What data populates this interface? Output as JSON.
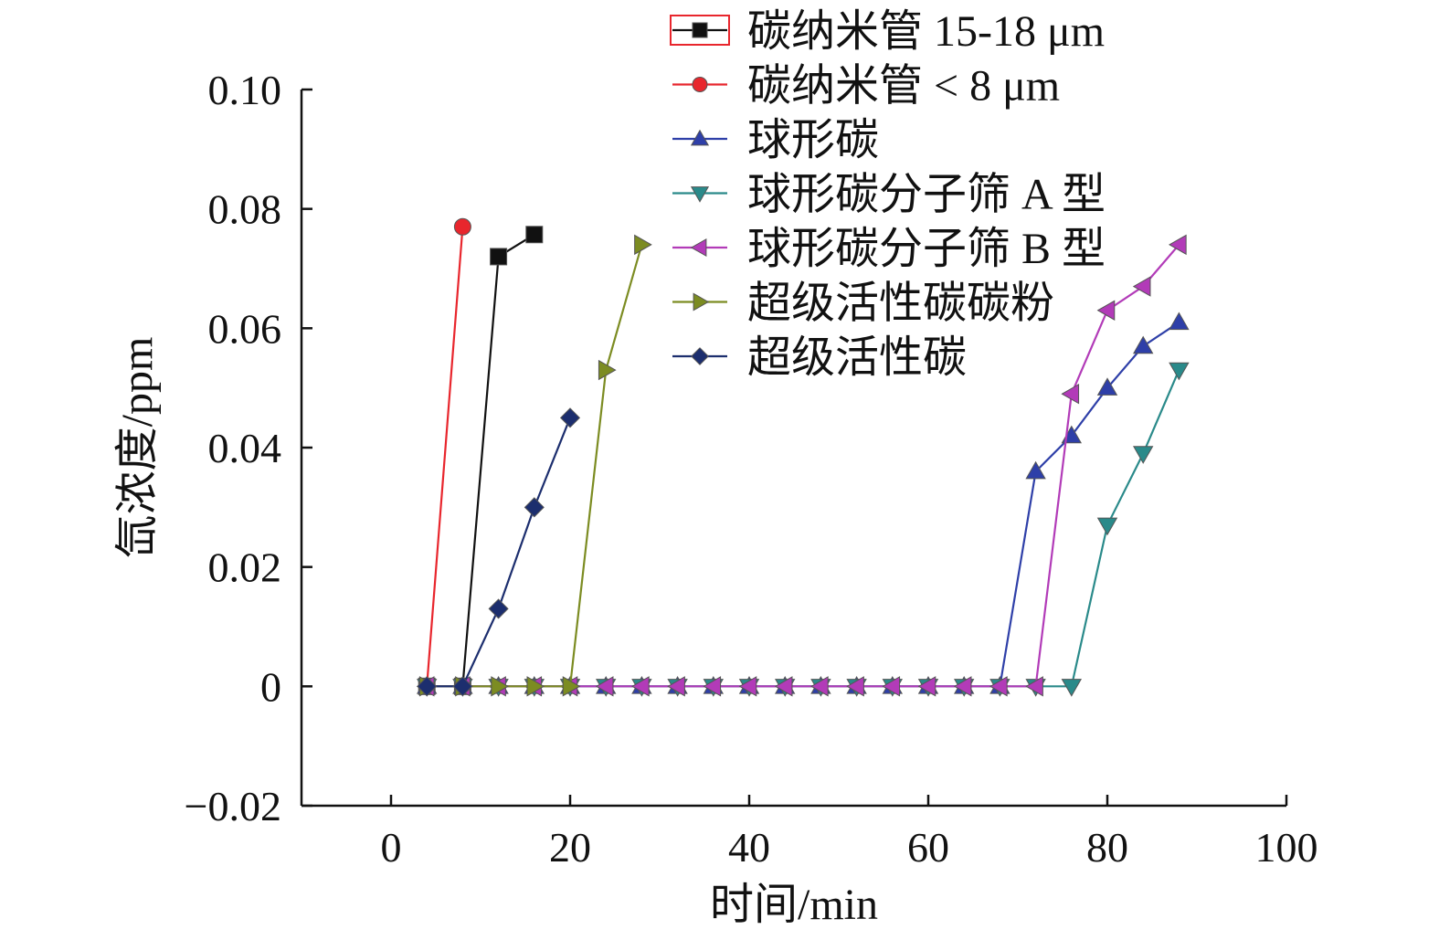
{
  "chart_data": {
    "type": "line",
    "title": "",
    "xlabel": "时间/min",
    "ylabel": "氙浓度/ppm",
    "xlim": [
      -10,
      100
    ],
    "ylim": [
      -0.02,
      0.1
    ],
    "xticks": [
      0,
      20,
      40,
      60,
      80,
      100
    ],
    "xtick_labels": [
      "0",
      "20",
      "40",
      "60",
      "80",
      "100"
    ],
    "yticks": [
      -0.02,
      0,
      0.02,
      0.04,
      0.06,
      0.08,
      0.1
    ],
    "ytick_labels": [
      "−0.02",
      "0",
      "0.02",
      "0.04",
      "0.06",
      "0.08",
      "0.10"
    ],
    "grid": false,
    "legend_position": "top-right",
    "series": [
      {
        "name": "碳纳米管 15-18 μm",
        "color": "#111111",
        "marker": "square",
        "x": [
          4,
          8,
          12,
          16
        ],
        "y": [
          0,
          0,
          0.072,
          0.0757
        ]
      },
      {
        "name": "碳纳米管 < 8 μm",
        "color": "#e8262d",
        "marker": "circle",
        "x": [
          4,
          8
        ],
        "y": [
          0,
          0.077
        ]
      },
      {
        "name": "球形碳",
        "color": "#2e3fa8",
        "marker": "triangle-up",
        "x": [
          4,
          8,
          12,
          16,
          20,
          24,
          28,
          32,
          36,
          40,
          44,
          48,
          52,
          56,
          60,
          64,
          68,
          72,
          76,
          80,
          84,
          88
        ],
        "y": [
          0,
          0,
          0,
          0,
          0,
          0,
          0,
          0,
          0,
          0,
          0,
          0,
          0,
          0,
          0,
          0,
          0,
          0.036,
          0.042,
          0.05,
          0.057,
          0.061
        ]
      },
      {
        "name": "球形碳分子筛 A 型",
        "color": "#2a8a8a",
        "marker": "triangle-down",
        "x": [
          4,
          8,
          12,
          16,
          20,
          24,
          28,
          32,
          36,
          40,
          44,
          48,
          52,
          56,
          60,
          64,
          68,
          72,
          76,
          80,
          84,
          88
        ],
        "y": [
          0,
          0,
          0,
          0,
          0,
          0,
          0,
          0,
          0,
          0,
          0,
          0,
          0,
          0,
          0,
          0,
          0,
          0,
          0,
          0.027,
          0.039,
          0.053
        ]
      },
      {
        "name": "球形碳分子筛 B 型",
        "color": "#b23bb8",
        "marker": "triangle-left",
        "x": [
          4,
          8,
          12,
          16,
          20,
          24,
          28,
          32,
          36,
          40,
          44,
          48,
          52,
          56,
          60,
          64,
          68,
          72,
          76,
          80,
          84,
          88
        ],
        "y": [
          0,
          0,
          0,
          0,
          0,
          0,
          0,
          0,
          0,
          0,
          0,
          0,
          0,
          0,
          0,
          0,
          0,
          0,
          0.049,
          0.063,
          0.067,
          0.074
        ]
      },
      {
        "name": "超级活性碳碳粉",
        "color": "#7c8c22",
        "marker": "triangle-right",
        "x": [
          4,
          8,
          12,
          16,
          20,
          24,
          28
        ],
        "y": [
          0,
          0,
          0,
          0,
          0,
          0.053,
          0.074
        ]
      },
      {
        "name": "超级活性碳",
        "color": "#1c2e6e",
        "marker": "diamond",
        "x": [
          4,
          8,
          12,
          16,
          20
        ],
        "y": [
          0,
          0,
          0.013,
          0.03,
          0.045
        ]
      }
    ]
  }
}
